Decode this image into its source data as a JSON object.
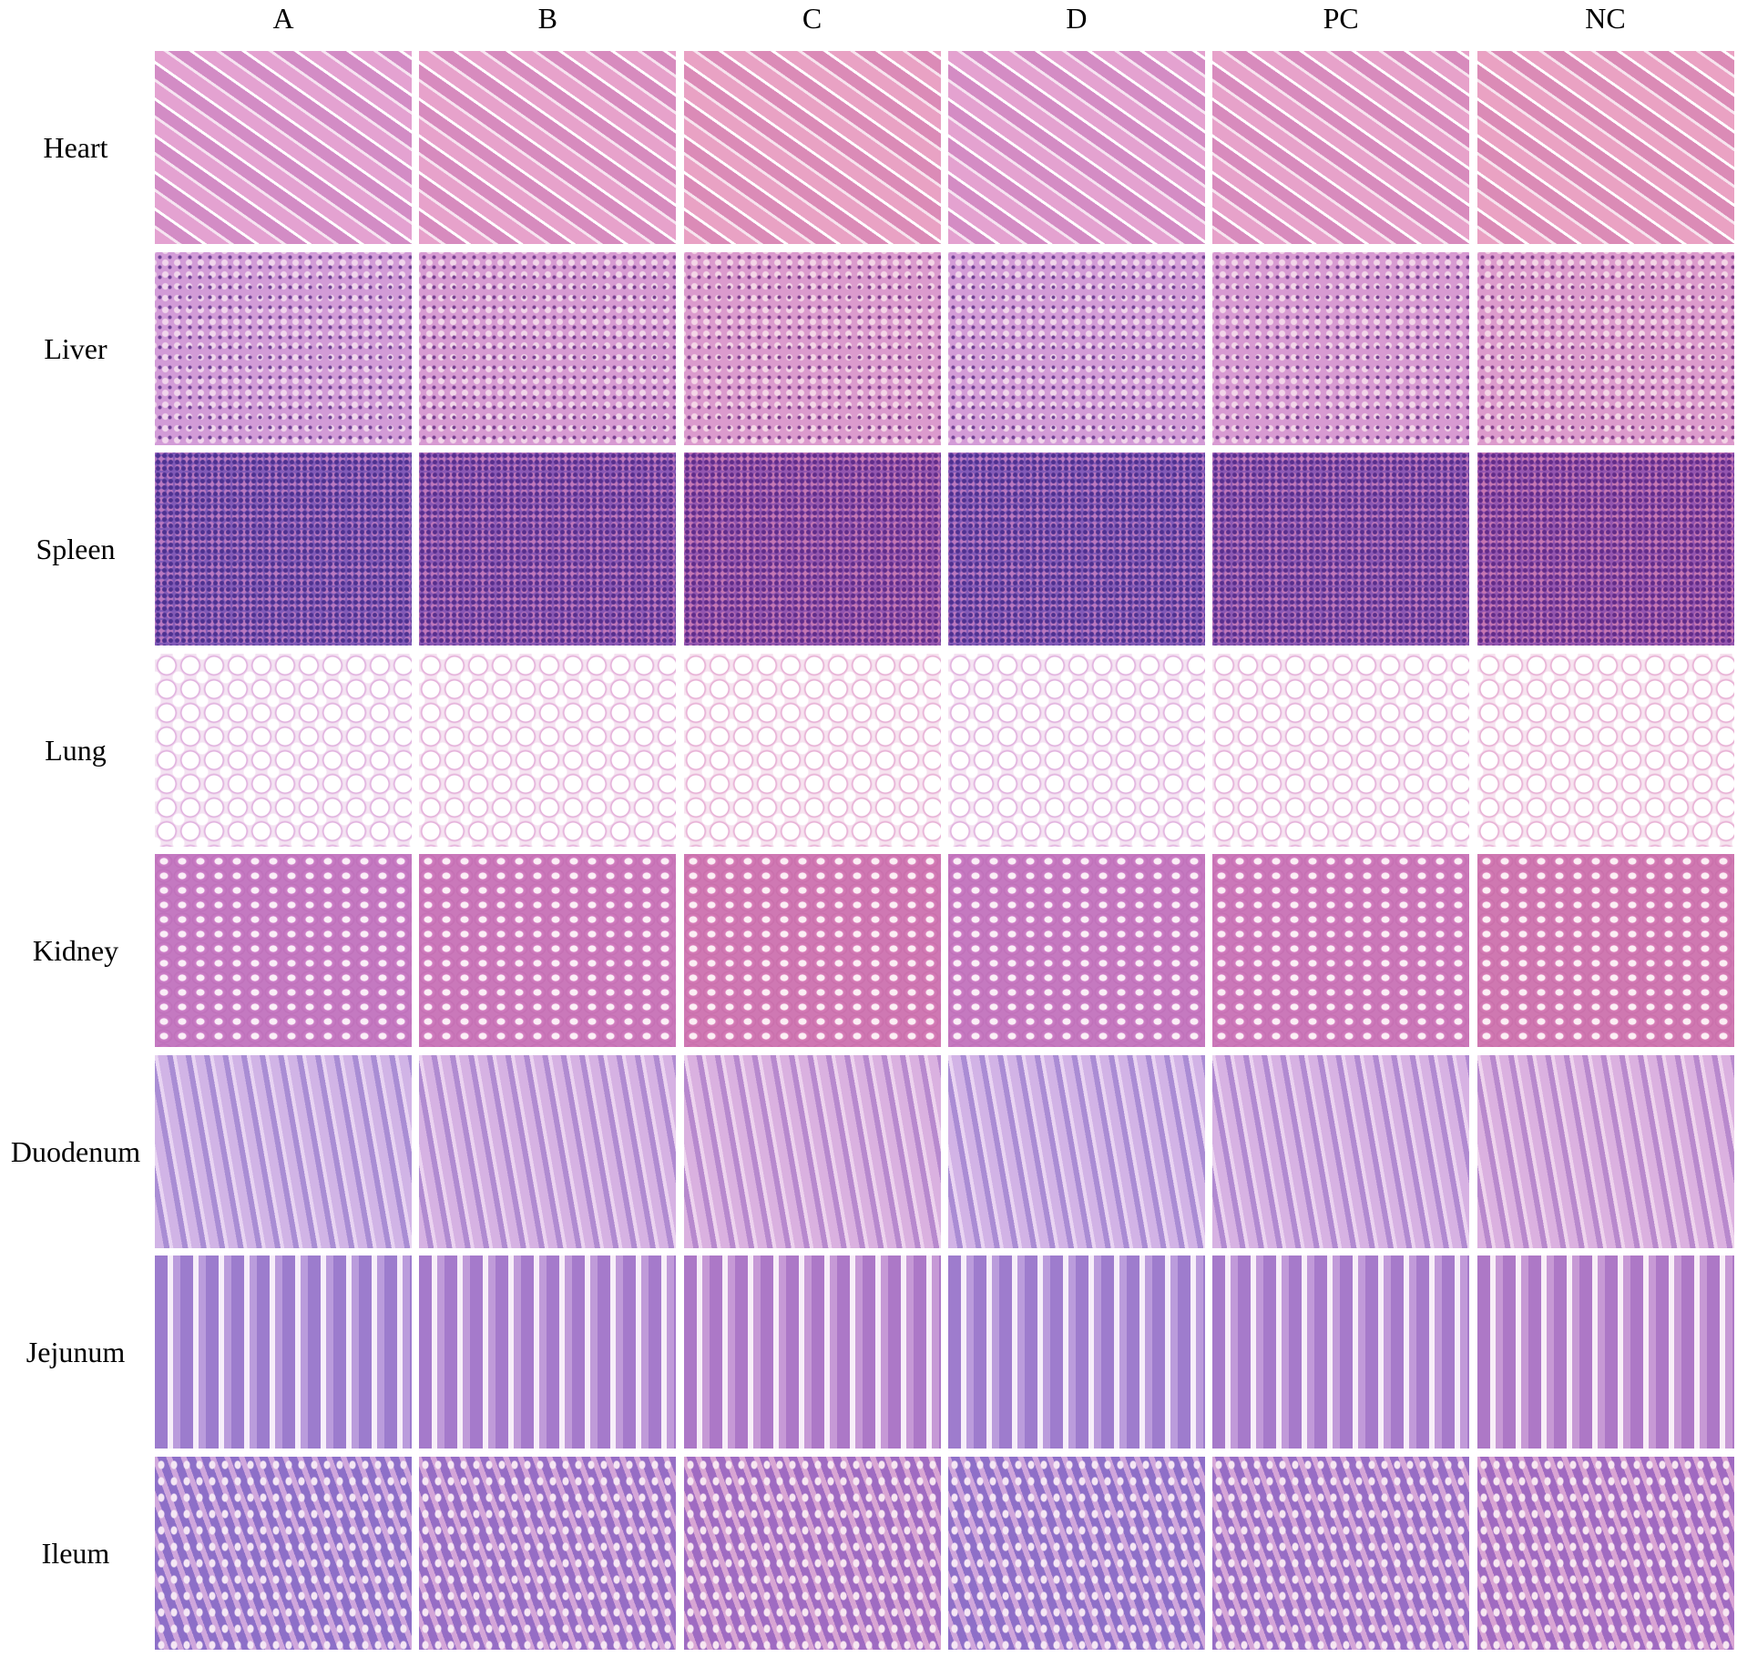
{
  "columns": [
    "A",
    "B",
    "C",
    "D",
    "PC",
    "NC"
  ],
  "rows": [
    "Heart",
    "Liver",
    "Spleen",
    "Lung",
    "Kidney",
    "Duodenum",
    "Jejunum",
    "Ileum"
  ]
}
